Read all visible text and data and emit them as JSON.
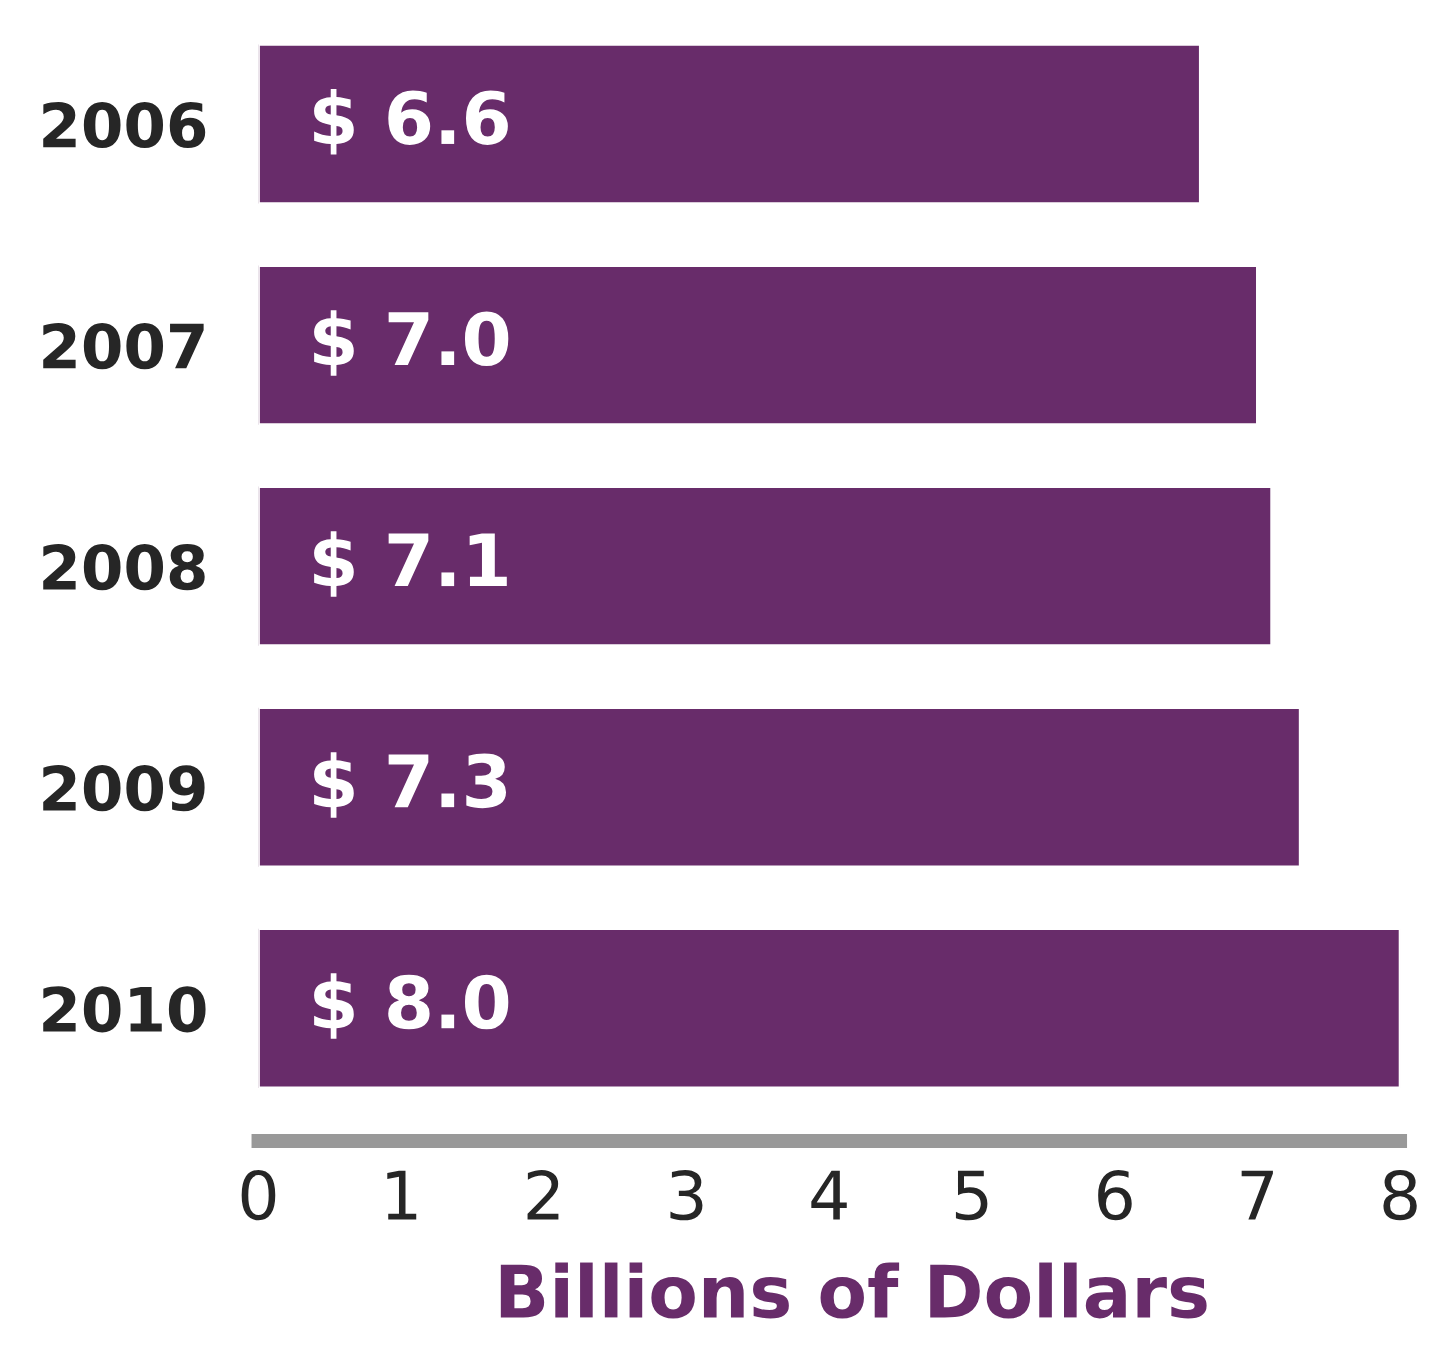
{
  "chart_data": {
    "type": "bar",
    "orientation": "horizontal",
    "categories": [
      "2006",
      "2007",
      "2008",
      "2009",
      "2010"
    ],
    "values": [
      6.6,
      7.0,
      7.1,
      7.3,
      8.0
    ],
    "value_labels": [
      "$ 6.6",
      "$ 7.0",
      "$ 7.1",
      "$ 7.3",
      "$ 8.0"
    ],
    "color": "#682c6a",
    "xlabel": "Billions of Dollars",
    "xlim": [
      0,
      8
    ],
    "xticks": [
      0,
      1,
      2,
      3,
      4,
      5,
      6,
      7,
      8
    ],
    "grid": false,
    "legend": false
  }
}
